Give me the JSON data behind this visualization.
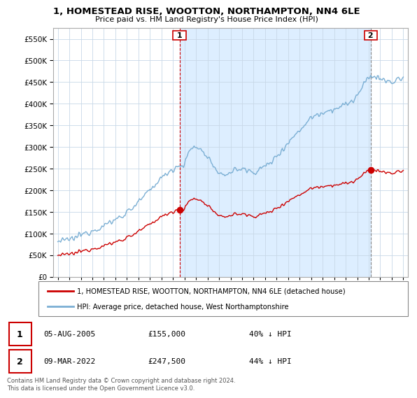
{
  "title": "1, HOMESTEAD RISE, WOOTTON, NORTHAMPTON, NN4 6LE",
  "subtitle": "Price paid vs. HM Land Registry's House Price Index (HPI)",
  "legend_line1": "1, HOMESTEAD RISE, WOOTTON, NORTHAMPTON, NN4 6LE (detached house)",
  "legend_line2": "HPI: Average price, detached house, West Northamptonshire",
  "sale1_date": "05-AUG-2005",
  "sale1_price": "£155,000",
  "sale1_info": "40% ↓ HPI",
  "sale2_date": "09-MAR-2022",
  "sale2_price": "£247,500",
  "sale2_info": "44% ↓ HPI",
  "footer": "Contains HM Land Registry data © Crown copyright and database right 2024.\nThis data is licensed under the Open Government Licence v3.0.",
  "sale_color": "#cc0000",
  "hpi_color": "#7bafd4",
  "shade_color": "#ddeeff",
  "sale1_year": 2005.58,
  "sale2_year": 2022.18,
  "sale1_price_val": 155000,
  "sale2_price_val": 247500,
  "ylim_max": 575000,
  "ylim_min": 0
}
